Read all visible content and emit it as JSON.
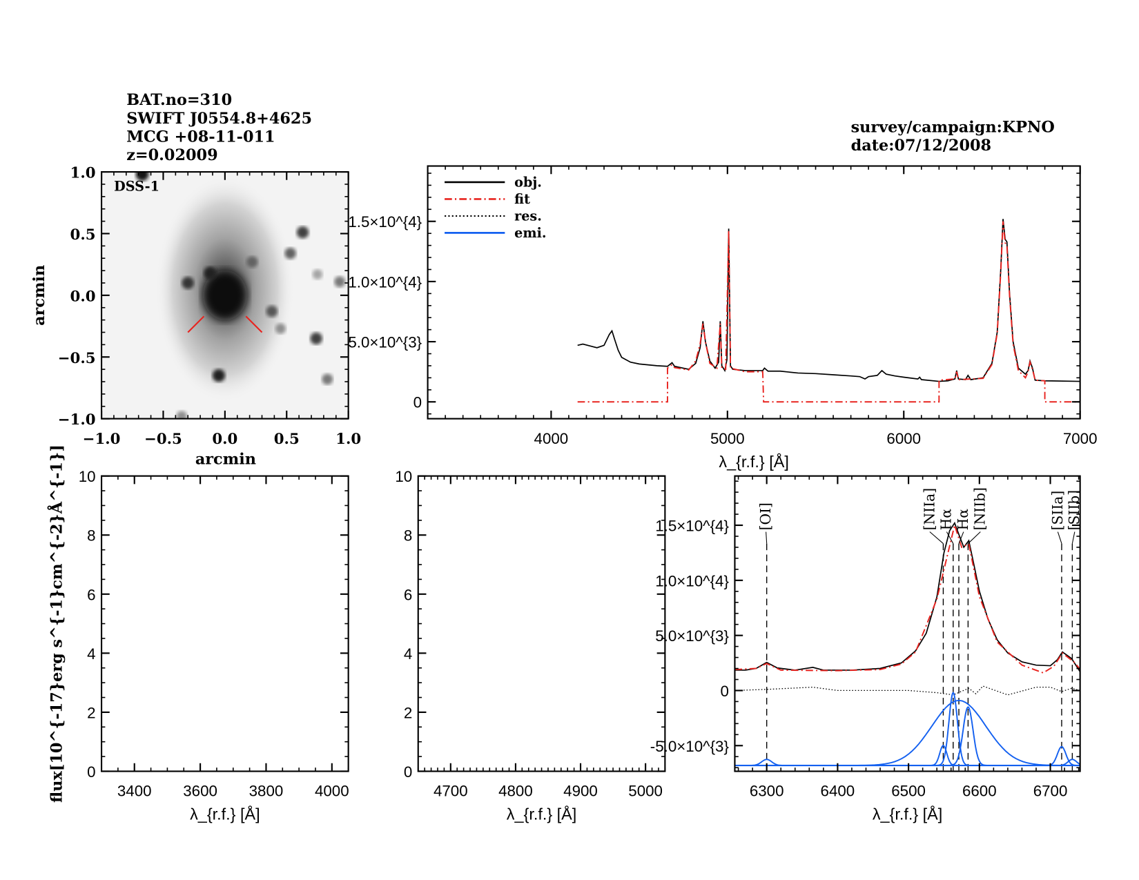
{
  "header": {
    "left": [
      "BAT.no=310",
      "SWIFT J0554.8+4625",
      "MCG +08-11-011",
      "z=0.02009"
    ],
    "right": [
      "survey/campaign:KPNO",
      "date:07/12/2008"
    ]
  },
  "colors": {
    "obj": "#000000",
    "fit": "#e8231f",
    "res": "#000000",
    "emi": "#1360f0",
    "marker": "#e8231f"
  },
  "chart_data": [
    {
      "id": "image",
      "type": "image",
      "label": "DSS-1",
      "xlabel": "arcmin",
      "ylabel": "arcmin",
      "xlim": [
        -1.0,
        1.0
      ],
      "ylim": [
        -1.0,
        1.0
      ],
      "xticks": [
        "-1.0",
        "-0.5",
        "0.0",
        "0.5",
        "1.0"
      ],
      "yticks": [
        "-1.0",
        "-0.5",
        "0.0",
        "0.5",
        "1.0"
      ],
      "galaxy_center": [
        0.0,
        0.0
      ],
      "sources": [
        [
          -0.3,
          0.1,
          0.8
        ],
        [
          -0.12,
          0.18,
          0.9
        ],
        [
          0.22,
          0.27,
          0.6
        ],
        [
          0.53,
          0.34,
          0.6
        ],
        [
          0.63,
          0.51,
          0.75
        ],
        [
          0.93,
          0.11,
          0.5
        ],
        [
          0.38,
          -0.13,
          0.65
        ],
        [
          0.45,
          -0.27,
          0.4
        ],
        [
          0.74,
          -0.35,
          0.75
        ],
        [
          0.83,
          -0.68,
          0.5
        ],
        [
          -0.05,
          -0.65,
          0.9
        ],
        [
          -0.67,
          0.98,
          0.95
        ],
        [
          0.75,
          0.17,
          0.3
        ],
        [
          -0.35,
          -0.98,
          0.4
        ]
      ],
      "target_markers": [
        [
          [
            -0.3,
            -0.3
          ],
          [
            -0.17,
            -0.17
          ]
        ],
        [
          [
            0.17,
            -0.17
          ],
          [
            0.3,
            -0.3
          ]
        ]
      ]
    },
    {
      "id": "full",
      "type": "line",
      "xlabel": "λ_{r.f.} [Å]",
      "xlim": [
        3300,
        7000
      ],
      "ylim": [
        -1400,
        19600
      ],
      "xticks": [
        4000,
        5000,
        6000,
        7000
      ],
      "xtick_labels": [
        "4000",
        "5000",
        "6000",
        "7000"
      ],
      "yticks": [
        0,
        5000,
        10000,
        15000
      ],
      "ytick_labels": [
        "0",
        "5.0×10^{3}",
        "1.0×10^{4}",
        "1.5×10^{4}"
      ],
      "legend": {
        "placement": "top-left",
        "entries": [
          "obj.",
          "fit",
          "res.",
          "emi."
        ]
      },
      "series": [
        {
          "name": "obj.",
          "points": [
            [
              4150,
              4700
            ],
            [
              4180,
              4800
            ],
            [
              4220,
              4650
            ],
            [
              4260,
              4500
            ],
            [
              4300,
              4700
            ],
            [
              4330,
              5600
            ],
            [
              4345,
              5900
            ],
            [
              4360,
              5200
            ],
            [
              4380,
              4300
            ],
            [
              4400,
              3700
            ],
            [
              4450,
              3300
            ],
            [
              4500,
              3150
            ],
            [
              4600,
              3000
            ],
            [
              4660,
              2950
            ],
            [
              4686,
              3250
            ],
            [
              4700,
              2950
            ],
            [
              4780,
              2700
            ],
            [
              4820,
              3200
            ],
            [
              4845,
              4500
            ],
            [
              4861,
              6700
            ],
            [
              4875,
              5000
            ],
            [
              4900,
              3400
            ],
            [
              4930,
              2800
            ],
            [
              4950,
              3300
            ],
            [
              4959,
              6700
            ],
            [
              4968,
              3000
            ],
            [
              4985,
              2600
            ],
            [
              4997,
              3500
            ],
            [
              5007,
              14400
            ],
            [
              5017,
              3000
            ],
            [
              5030,
              2700
            ],
            [
              5100,
              2600
            ],
            [
              5200,
              2600
            ],
            [
              5210,
              2800
            ],
            [
              5230,
              2550
            ],
            [
              5300,
              2550
            ],
            [
              5400,
              2400
            ],
            [
              5500,
              2350
            ],
            [
              5600,
              2250
            ],
            [
              5700,
              2150
            ],
            [
              5750,
              2100
            ],
            [
              5780,
              1900
            ],
            [
              5800,
              2100
            ],
            [
              5850,
              2200
            ],
            [
              5876,
              2600
            ],
            [
              5900,
              2300
            ],
            [
              5950,
              2150
            ],
            [
              6000,
              2050
            ],
            [
              6080,
              1900
            ],
            [
              6090,
              2050
            ],
            [
              6100,
              1850
            ],
            [
              6200,
              1700
            ],
            [
              6250,
              1750
            ],
            [
              6290,
              1900
            ],
            [
              6300,
              2600
            ],
            [
              6310,
              1900
            ],
            [
              6350,
              1850
            ],
            [
              6364,
              2200
            ],
            [
              6380,
              1850
            ],
            [
              6450,
              2000
            ],
            [
              6500,
              3200
            ],
            [
              6530,
              5800
            ],
            [
              6550,
              11000
            ],
            [
              6563,
              15200
            ],
            [
              6575,
              13500
            ],
            [
              6585,
              13300
            ],
            [
              6600,
              9000
            ],
            [
              6620,
              5000
            ],
            [
              6650,
              2800
            ],
            [
              6690,
              2300
            ],
            [
              6705,
              2600
            ],
            [
              6716,
              3400
            ],
            [
              6730,
              2800
            ],
            [
              6745,
              1800
            ],
            [
              6800,
              1750
            ],
            [
              7000,
              1700
            ]
          ]
        },
        {
          "name": "fit",
          "points": [
            [
              4150,
              0
            ],
            [
              4660,
              0
            ],
            [
              4660,
              2800
            ],
            [
              4686,
              3100
            ],
            [
              4700,
              2850
            ],
            [
              4780,
              2650
            ],
            [
              4820,
              3400
            ],
            [
              4845,
              4800
            ],
            [
              4861,
              6500
            ],
            [
              4875,
              5000
            ],
            [
              4900,
              3200
            ],
            [
              4940,
              2800
            ],
            [
              4959,
              6500
            ],
            [
              4968,
              2800
            ],
            [
              4990,
              2700
            ],
            [
              5007,
              14200
            ],
            [
              5017,
              2800
            ],
            [
              5100,
              2500
            ],
            [
              5200,
              2500
            ],
            [
              5205,
              0
            ],
            [
              6200,
              0
            ],
            [
              6200,
              1800
            ],
            [
              6290,
              1900
            ],
            [
              6300,
              2500
            ],
            [
              6310,
              1850
            ],
            [
              6450,
              1950
            ],
            [
              6500,
              3100
            ],
            [
              6530,
              5700
            ],
            [
              6550,
              10800
            ],
            [
              6563,
              15000
            ],
            [
              6575,
              13200
            ],
            [
              6585,
              13000
            ],
            [
              6600,
              8800
            ],
            [
              6620,
              4800
            ],
            [
              6650,
              2600
            ],
            [
              6690,
              2000
            ],
            [
              6705,
              2500
            ],
            [
              6716,
              3300
            ],
            [
              6730,
              2700
            ],
            [
              6745,
              1800
            ],
            [
              6800,
              1750
            ],
            [
              6800,
              0
            ],
            [
              7000,
              0
            ]
          ]
        }
      ]
    },
    {
      "id": "hbeta_blue",
      "type": "line",
      "xlabel": "λ_{r.f.} [Å]",
      "ylabel": "flux[10^{-17}erg s^{-1}cm^{-2}Å^{-1}]",
      "xlim": [
        3300,
        4050
      ],
      "ylim": [
        0,
        10
      ],
      "xticks": [
        3400,
        3600,
        3800,
        4000
      ],
      "xtick_labels": [
        "3400",
        "3600",
        "3800",
        "4000"
      ],
      "yticks": [
        0,
        2,
        4,
        6,
        8,
        10
      ],
      "ytick_labels": [
        "0",
        "2",
        "4",
        "6",
        "8",
        "10"
      ],
      "series": []
    },
    {
      "id": "hbeta",
      "type": "line",
      "xlabel": "λ_{r.f.} [Å]",
      "xlim": [
        4650,
        5030
      ],
      "ylim": [
        0,
        10
      ],
      "xticks": [
        4700,
        4800,
        4900,
        5000
      ],
      "xtick_labels": [
        "4700",
        "4800",
        "4900",
        "5000"
      ],
      "yticks": [
        0,
        2,
        4,
        6,
        8,
        10
      ],
      "ytick_labels": [
        "0",
        "2",
        "4",
        "6",
        "8",
        "10"
      ],
      "series": []
    },
    {
      "id": "halpha",
      "type": "line",
      "xlabel": "λ_{r.f.} [Å]",
      "xlim": [
        6255,
        6742
      ],
      "ylim": [
        -7330,
        19470
      ],
      "xticks": [
        6300,
        6400,
        6500,
        6600,
        6700
      ],
      "xtick_labels": [
        "6300",
        "6400",
        "6500",
        "6600",
        "6700"
      ],
      "yticks": [
        -5000,
        0,
        5000,
        10000,
        15000
      ],
      "ytick_labels": [
        "-5.0×10^{3}",
        "0",
        "5.0×10^{3}",
        "1.0×10^{4}",
        "1.5×10^{4}"
      ],
      "line_markers": [
        {
          "label": "[OI]",
          "wavelength": 6300
        },
        {
          "label": "[NIIa]",
          "wavelength": 6549
        },
        {
          "label": "Hα",
          "wavelength": 6563
        },
        {
          "label": "Hα",
          "wavelength": 6571
        },
        {
          "label": "[NIIb]",
          "wavelength": 6584
        },
        {
          "label": "[SIIa]",
          "wavelength": 6716
        },
        {
          "label": "[SIIb]",
          "wavelength": 6731
        }
      ],
      "series": [
        {
          "name": "obj.",
          "points": [
            [
              6255,
              1850
            ],
            [
              6270,
              1850
            ],
            [
              6285,
              2000
            ],
            [
              6300,
              2550
            ],
            [
              6315,
              2050
            ],
            [
              6340,
              1850
            ],
            [
              6365,
              2100
            ],
            [
              6380,
              1850
            ],
            [
              6420,
              1850
            ],
            [
              6460,
              2000
            ],
            [
              6490,
              2500
            ],
            [
              6510,
              3600
            ],
            [
              6525,
              5200
            ],
            [
              6540,
              8500
            ],
            [
              6550,
              12500
            ],
            [
              6558,
              14500
            ],
            [
              6565,
              15200
            ],
            [
              6572,
              14000
            ],
            [
              6578,
              13000
            ],
            [
              6585,
              13600
            ],
            [
              6592,
              11500
            ],
            [
              6600,
              9000
            ],
            [
              6612,
              6500
            ],
            [
              6625,
              4600
            ],
            [
              6640,
              3400
            ],
            [
              6660,
              2600
            ],
            [
              6680,
              2300
            ],
            [
              6700,
              2250
            ],
            [
              6710,
              2800
            ],
            [
              6717,
              3500
            ],
            [
              6730,
              2900
            ],
            [
              6742,
              1700
            ]
          ]
        },
        {
          "name": "fit",
          "points": [
            [
              6255,
              1900
            ],
            [
              6285,
              2000
            ],
            [
              6300,
              2450
            ],
            [
              6320,
              1850
            ],
            [
              6400,
              1800
            ],
            [
              6460,
              1900
            ],
            [
              6490,
              2400
            ],
            [
              6510,
              3500
            ],
            [
              6540,
              8300
            ],
            [
              6565,
              15000
            ],
            [
              6575,
              13000
            ],
            [
              6585,
              13300
            ],
            [
              6600,
              8500
            ],
            [
              6625,
              4400
            ],
            [
              6660,
              2300
            ],
            [
              6690,
              1600
            ],
            [
              6705,
              2200
            ],
            [
              6717,
              3400
            ],
            [
              6735,
              2500
            ],
            [
              6742,
              1900
            ]
          ]
        },
        {
          "name": "res.",
          "points": [
            [
              6255,
              0
            ],
            [
              6300,
              100
            ],
            [
              6365,
              300
            ],
            [
              6400,
              0
            ],
            [
              6500,
              0
            ],
            [
              6540,
              -200
            ],
            [
              6563,
              -400
            ],
            [
              6585,
              200
            ],
            [
              6595,
              -300
            ],
            [
              6605,
              400
            ],
            [
              6640,
              -400
            ],
            [
              6680,
              300
            ],
            [
              6700,
              300
            ],
            [
              6716,
              -100
            ],
            [
              6730,
              200
            ],
            [
              6742,
              0
            ]
          ]
        },
        {
          "name": "emi.",
          "baseline": -6800,
          "components": [
            {
              "center": 6300,
              "peak": 550,
              "sigma": 7
            },
            {
              "center": 6549,
              "peak": 1800,
              "sigma": 5
            },
            {
              "center": 6563,
              "peak": 6600,
              "sigma": 6
            },
            {
              "center": 6571,
              "peak": 5900,
              "sigma": 38
            },
            {
              "center": 6584,
              "peak": 5300,
              "sigma": 7
            },
            {
              "center": 6716,
              "peak": 1700,
              "sigma": 6
            },
            {
              "center": 6731,
              "peak": 550,
              "sigma": 6
            }
          ]
        }
      ]
    }
  ]
}
